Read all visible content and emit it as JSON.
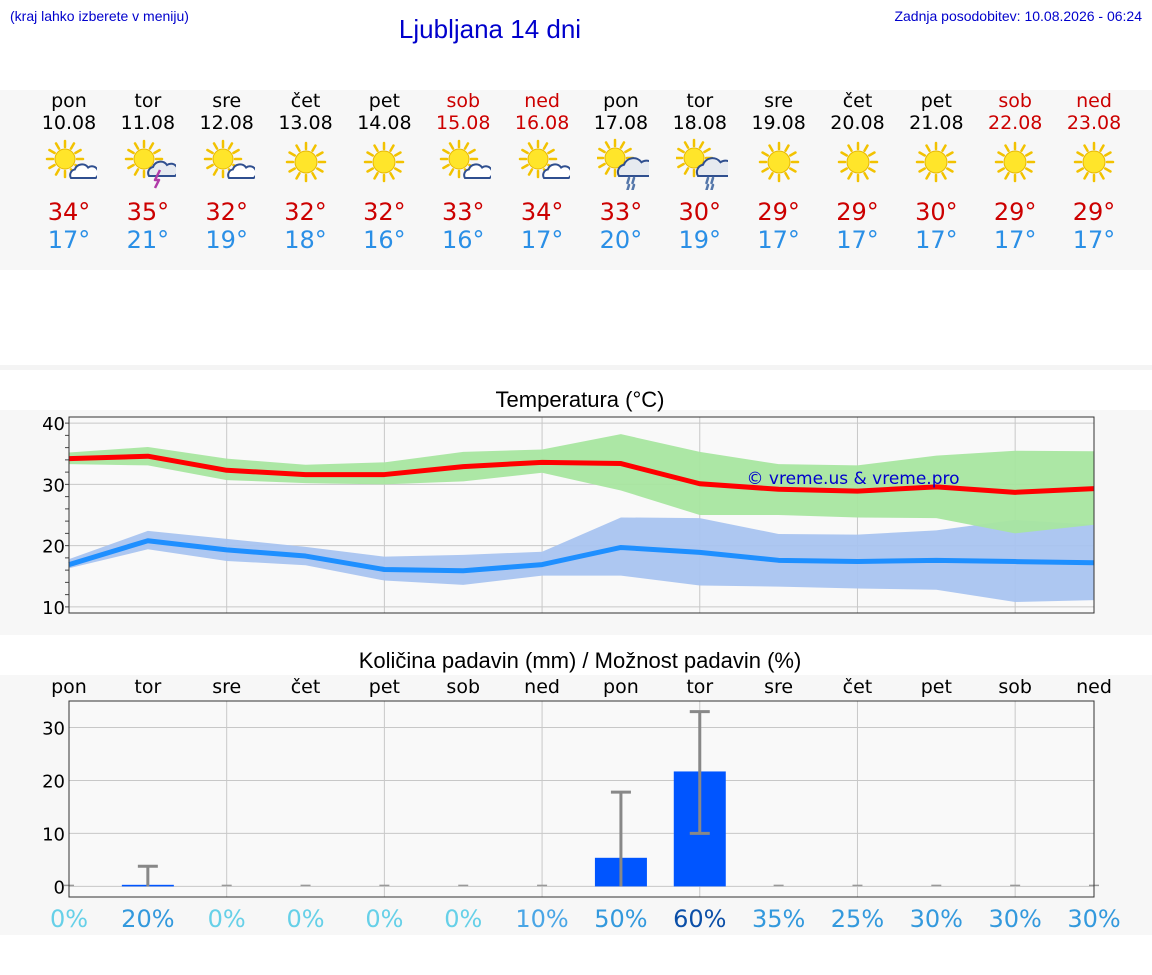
{
  "header": {
    "hint": "(kraj lahko izberete v meniju)",
    "title": "Ljubljana 14 dni",
    "updated": "Zadnja posodobitev: 10.08.2026 - 06:24"
  },
  "days": [
    {
      "name": "pon",
      "date": "10.08",
      "weekend": false,
      "icon": "sun-cloud-icon",
      "max": "34°",
      "min": "17°"
    },
    {
      "name": "tor",
      "date": "11.08",
      "weekend": false,
      "icon": "sun-cloud-lightning-icon",
      "max": "35°",
      "min": "21°"
    },
    {
      "name": "sre",
      "date": "12.08",
      "weekend": false,
      "icon": "sun-cloud-icon",
      "max": "32°",
      "min": "19°"
    },
    {
      "name": "čet",
      "date": "13.08",
      "weekend": false,
      "icon": "sun-icon",
      "max": "32°",
      "min": "18°"
    },
    {
      "name": "pet",
      "date": "14.08",
      "weekend": false,
      "icon": "sun-icon",
      "max": "32°",
      "min": "16°"
    },
    {
      "name": "sob",
      "date": "15.08",
      "weekend": true,
      "icon": "sun-cloud-icon",
      "max": "33°",
      "min": "16°"
    },
    {
      "name": "ned",
      "date": "16.08",
      "weekend": true,
      "icon": "sun-cloud-icon",
      "max": "34°",
      "min": "17°"
    },
    {
      "name": "pon",
      "date": "17.08",
      "weekend": false,
      "icon": "sun-cloud-rain-icon",
      "max": "33°",
      "min": "20°"
    },
    {
      "name": "tor",
      "date": "18.08",
      "weekend": false,
      "icon": "sun-cloud-rain-icon",
      "max": "30°",
      "min": "19°"
    },
    {
      "name": "sre",
      "date": "19.08",
      "weekend": false,
      "icon": "sun-icon",
      "max": "29°",
      "min": "17°"
    },
    {
      "name": "čet",
      "date": "20.08",
      "weekend": false,
      "icon": "sun-icon",
      "max": "29°",
      "min": "17°"
    },
    {
      "name": "pet",
      "date": "21.08",
      "weekend": false,
      "icon": "sun-icon",
      "max": "30°",
      "min": "17°"
    },
    {
      "name": "sob",
      "date": "22.08",
      "weekend": true,
      "icon": "sun-icon",
      "max": "29°",
      "min": "17°"
    },
    {
      "name": "ned",
      "date": "23.08",
      "weekend": true,
      "icon": "sun-icon",
      "max": "29°",
      "min": "17°"
    }
  ],
  "colors": {
    "max_line": "#ff0000",
    "min_line": "#1e8fff",
    "max_band": "#a8e6a0",
    "min_band": "#a9c4f0",
    "bar": "#0055ff",
    "error_bar": "#888888",
    "weekend": "#cc0000",
    "link": "#0000cc"
  },
  "chart_data": [
    {
      "type": "line",
      "title": "Temperatura (°C)",
      "watermark": "© vreme.us & vreme.pro",
      "categories": [
        "10.08",
        "11.08",
        "12.08",
        "13.08",
        "14.08",
        "15.08",
        "16.08",
        "17.08",
        "18.08",
        "19.08",
        "20.08",
        "21.08",
        "22.08",
        "23.08"
      ],
      "ylim": [
        9,
        41
      ],
      "yticks": [
        10,
        20,
        30,
        40
      ],
      "grid": true,
      "series": [
        {
          "key": "max",
          "values": [
            34.2,
            34.6,
            32.3,
            31.6,
            31.6,
            32.9,
            33.6,
            33.4,
            30.1,
            29.2,
            28.9,
            29.6,
            28.7,
            29.3
          ],
          "band_low": [
            33.3,
            33.1,
            30.7,
            30.2,
            30.0,
            30.5,
            31.9,
            29.0,
            25.0,
            25.0,
            24.6,
            24.5,
            22.0,
            23.4
          ],
          "band_high": [
            35.2,
            36.1,
            34.2,
            33.2,
            33.6,
            35.3,
            35.7,
            38.2,
            35.3,
            33.3,
            33.1,
            34.7,
            35.5,
            35.4
          ]
        },
        {
          "key": "min",
          "values": [
            16.9,
            20.8,
            19.3,
            18.3,
            16.1,
            15.9,
            16.9,
            19.7,
            18.9,
            17.6,
            17.4,
            17.6,
            17.4,
            17.2
          ],
          "band_low": [
            16.3,
            19.4,
            17.5,
            16.8,
            14.3,
            13.6,
            15.1,
            15.1,
            13.5,
            13.3,
            13.0,
            12.8,
            10.8,
            11.1
          ],
          "band_high": [
            17.8,
            22.4,
            21.1,
            19.8,
            18.2,
            18.5,
            19.0,
            24.6,
            24.5,
            21.9,
            21.8,
            22.5,
            24.2,
            23.4
          ]
        }
      ]
    },
    {
      "type": "bar",
      "title": "Količina padavin (mm) / Možnost padavin (%)",
      "categories": [
        "pon",
        "tor",
        "sre",
        "čet",
        "pet",
        "sob",
        "ned",
        "pon",
        "tor",
        "sre",
        "čet",
        "pet",
        "sob",
        "ned"
      ],
      "values": [
        0,
        0.3,
        0,
        0,
        0,
        0,
        0,
        5.4,
        21.7,
        0,
        0,
        0,
        0,
        0
      ],
      "err_high": [
        0,
        3.8,
        0,
        0,
        0,
        0,
        0,
        17.8,
        33.0,
        0,
        0,
        0,
        0,
        0
      ],
      "err_low": [
        0,
        0,
        0,
        0,
        0,
        0,
        0,
        0,
        10.0,
        0,
        0,
        0,
        0,
        0
      ],
      "ylim": [
        -2,
        35
      ],
      "yticks": [
        0,
        10,
        20,
        30
      ],
      "grid": true,
      "probability": [
        "0%",
        "20%",
        "0%",
        "0%",
        "0%",
        "0%",
        "10%",
        "50%",
        "60%",
        "35%",
        "25%",
        "30%",
        "30%",
        "30%"
      ],
      "probability_values": [
        0,
        20,
        0,
        0,
        0,
        0,
        10,
        50,
        60,
        35,
        25,
        30,
        30,
        30
      ]
    }
  ]
}
